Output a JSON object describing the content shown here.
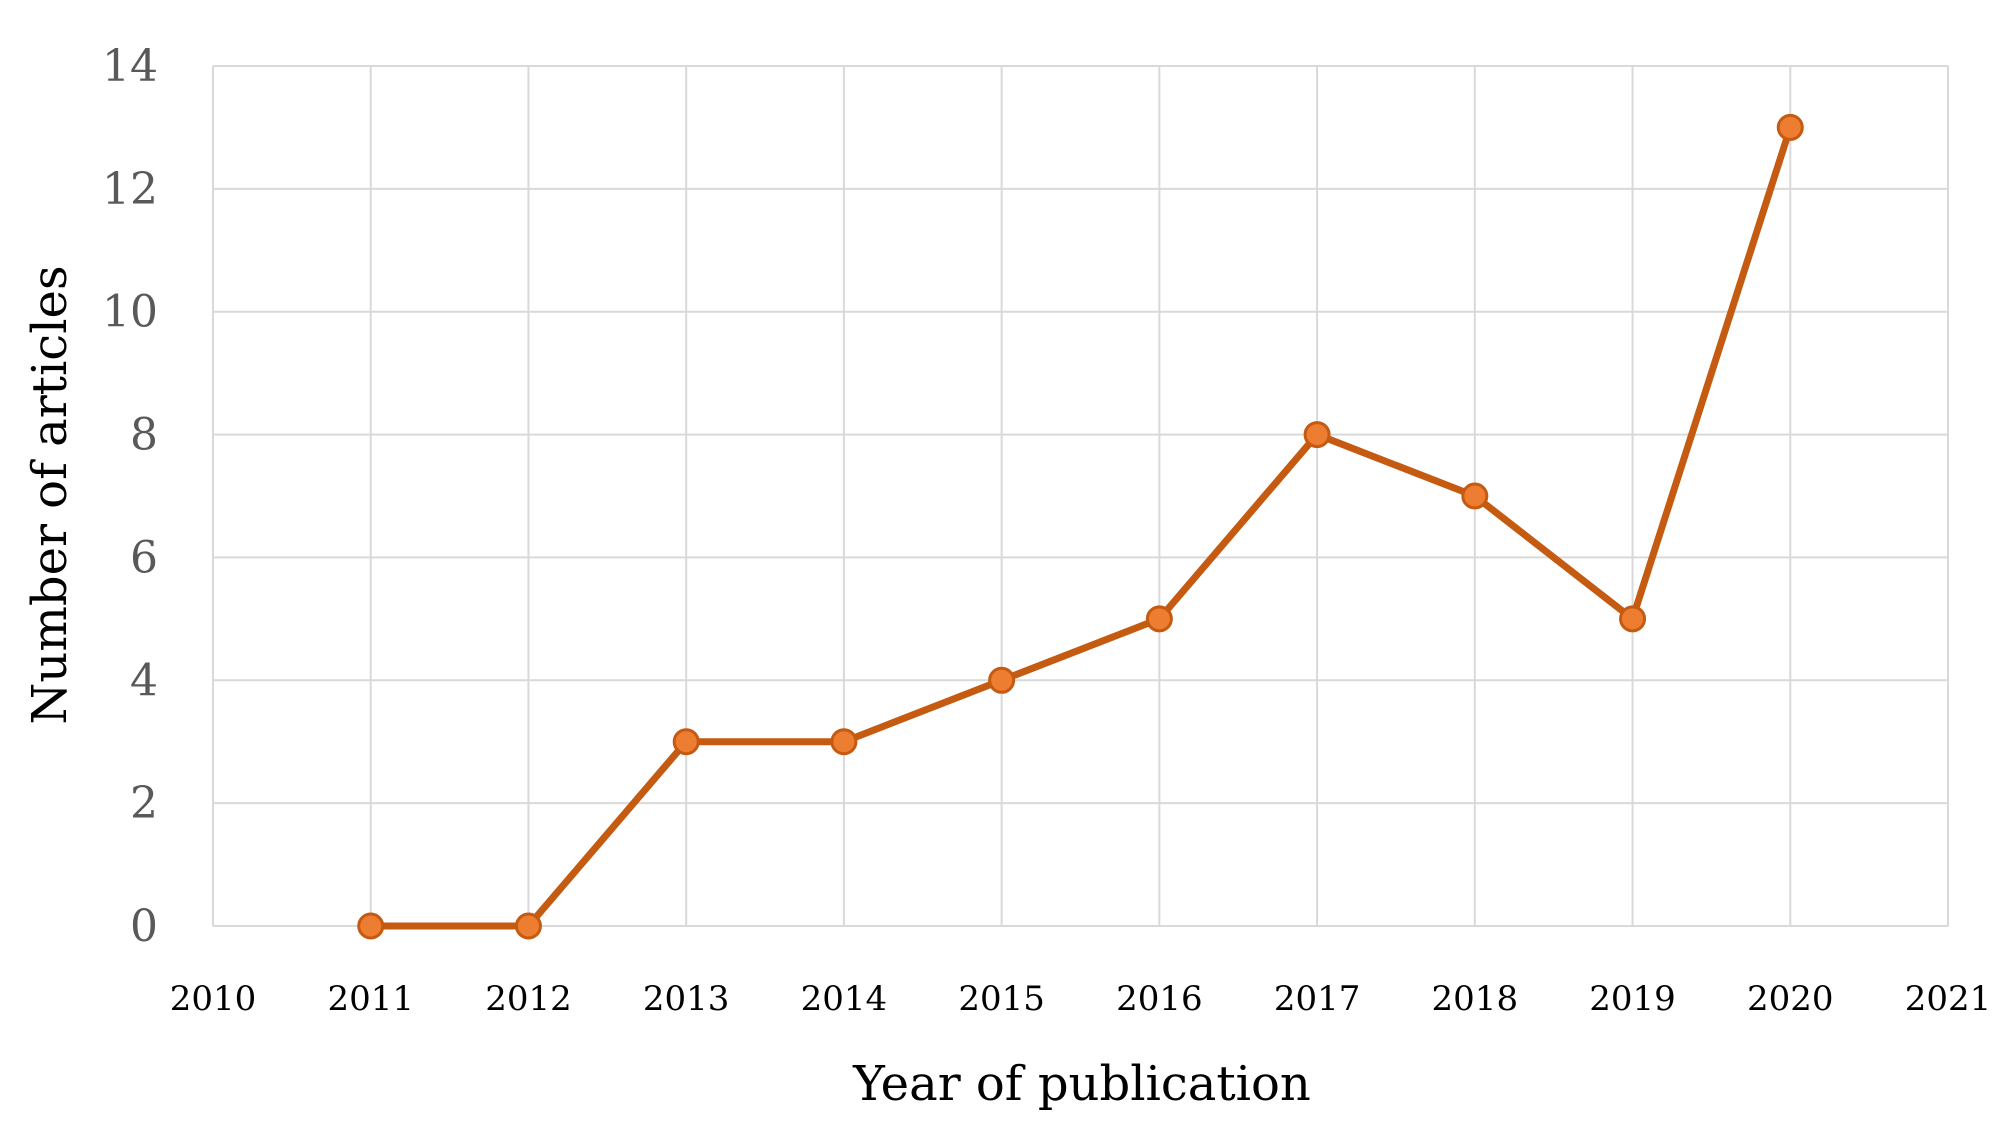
{
  "chart_data": {
    "type": "line",
    "xlabel": "Year of publication",
    "ylabel": "Number of articles",
    "xlim": [
      2010,
      2021
    ],
    "ylim": [
      0,
      14
    ],
    "x_ticks": [
      2010,
      2011,
      2012,
      2013,
      2014,
      2015,
      2016,
      2017,
      2018,
      2019,
      2020,
      2021
    ],
    "y_ticks": [
      0,
      2,
      4,
      6,
      8,
      10,
      12,
      14
    ],
    "grid": true,
    "legend": "none",
    "series": [
      {
        "x": [
          2011,
          2012,
          2013,
          2014,
          2015,
          2016,
          2017,
          2018,
          2019,
          2020
        ],
        "values": [
          0,
          0,
          3,
          3,
          4,
          5,
          8,
          7,
          5,
          13
        ],
        "color": "#C55A11",
        "marker_fill": "#ED7D31"
      }
    ]
  }
}
